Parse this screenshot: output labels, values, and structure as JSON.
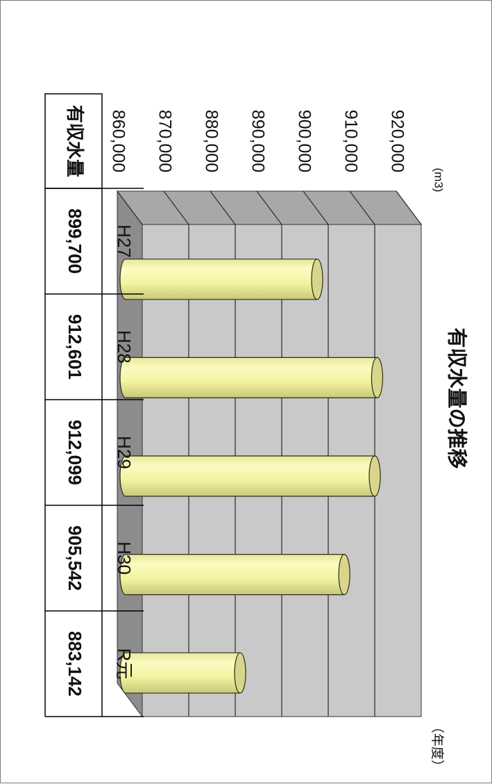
{
  "chart_data": {
    "type": "bar",
    "title": "有収水量の推移",
    "unit": "(m3)",
    "xlabel": "（年度）",
    "categories": [
      "H27",
      "H28",
      "H29",
      "H30",
      "R元"
    ],
    "series": [
      {
        "name": "有収水量",
        "values": [
          899700,
          912601,
          912099,
          905542,
          883142
        ]
      }
    ],
    "value_labels": [
      "899,700",
      "912,601",
      "912,099",
      "905,542",
      "883,142"
    ],
    "table_row_header": "有収水量",
    "y_ticks": [
      "860,000",
      "870,000",
      "880,000",
      "890,000",
      "900,000",
      "910,000",
      "920,000"
    ],
    "ylim": [
      860000,
      920000
    ],
    "grid": true,
    "orientation": "rotated-90-clockwise",
    "colors": {
      "bar": "#f6f6a0",
      "bar_edge": "#2b2b1a",
      "bar_cap": "#d9d68c",
      "plot_back": "#c9c9c9",
      "plot_side": "#8c8c8c",
      "plot_top": "#a8a8a8"
    }
  }
}
